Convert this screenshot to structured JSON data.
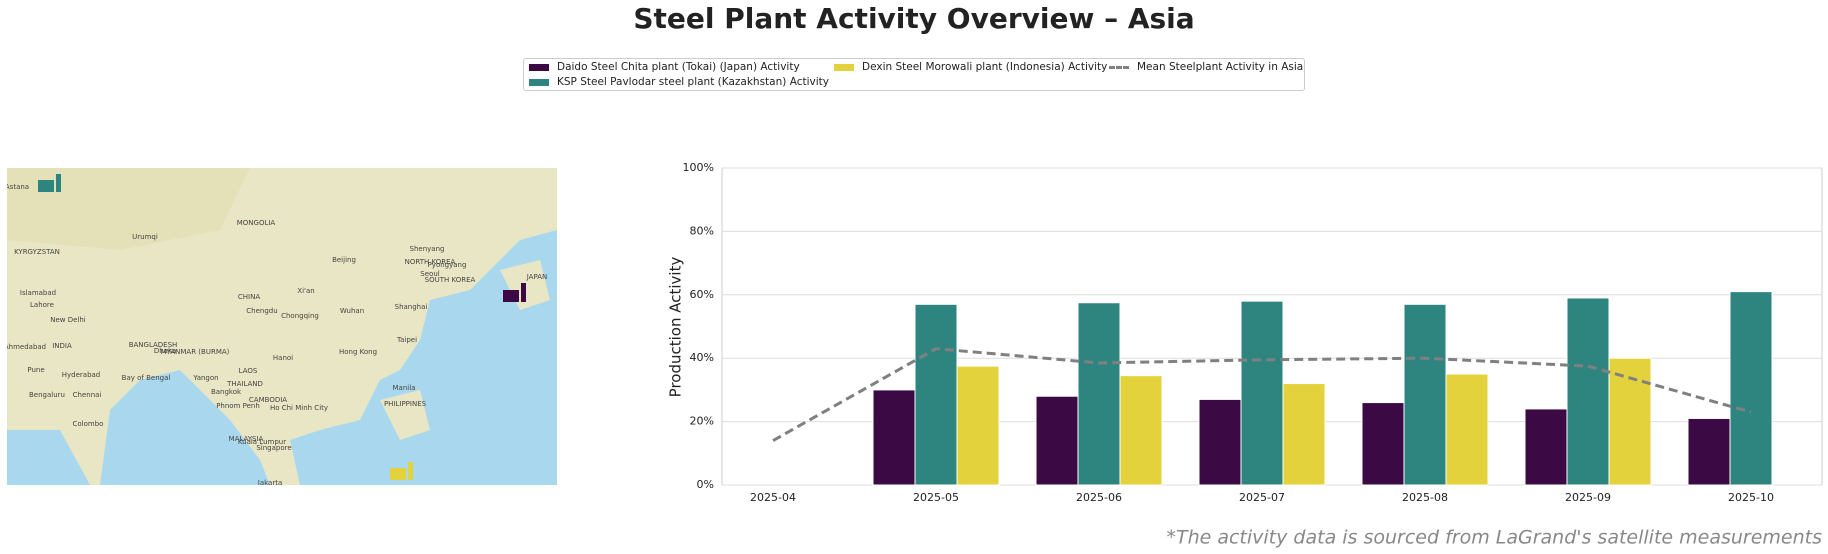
{
  "chart_data": {
    "type": "bar",
    "title": "Steel Plant Activity Overview – Asia",
    "ylabel": "Production Activity",
    "footnote": "*The activity data is sourced from LaGrand's satellite measurements",
    "categories": [
      "2025-04",
      "2025-05",
      "2025-06",
      "2025-07",
      "2025-08",
      "2025-09",
      "2025-10"
    ],
    "series": [
      {
        "name": "Daido Steel Chita plant (Tokai) (Japan) Activity",
        "color": "#3b0a45",
        "type": "bar",
        "values": [
          null,
          30,
          28,
          27,
          26,
          24,
          21
        ]
      },
      {
        "name": "KSP Steel Pavlodar steel plant (Kazakhstan) Activity",
        "color": "#2e8580",
        "type": "bar",
        "values": [
          null,
          57,
          57.5,
          58,
          57,
          59,
          61
        ]
      },
      {
        "name": "Dexin Steel Morowali plant (Indonesia) Activity",
        "color": "#e3d23c",
        "type": "bar",
        "values": [
          null,
          37.5,
          34.5,
          32,
          35,
          40,
          null
        ]
      },
      {
        "name": "Mean Steelplant Activity in Asia",
        "color": "#808080",
        "type": "line",
        "dashed": true,
        "values": [
          14,
          43,
          38.5,
          39.5,
          40,
          37.5,
          23
        ]
      }
    ],
    "ylim": [
      0,
      100
    ],
    "yticks": [
      {
        "value": 0,
        "label": "0%"
      },
      {
        "value": 20,
        "label": "20%"
      },
      {
        "value": 40,
        "label": "40%"
      },
      {
        "value": 60,
        "label": "60%"
      },
      {
        "value": 80,
        "label": "80%"
      },
      {
        "value": 100,
        "label": "100%"
      }
    ],
    "grid": true,
    "legend": "top"
  },
  "map": {
    "labels": [
      "Astana",
      "MONGOLIA",
      "Urumqi",
      "Shenyang",
      "Beijing",
      "Seoul",
      "NORTH KOREA",
      "SOUTH KOREA",
      "Pyongyang",
      "JAPAN",
      "CHINA",
      "Xi'an",
      "Chengdu",
      "Chongqing",
      "Wuhan",
      "Shanghai",
      "Islamabad",
      "Lahore",
      "New Delhi",
      "INDIA",
      "Ahmedabad",
      "Dhaka",
      "BANGLADESH",
      "Taipei",
      "Hong Kong",
      "Hanoi",
      "Pune",
      "Hyderabad",
      "Bay of Bengal",
      "Yangon",
      "THAILAND",
      "Bangkok",
      "Manila",
      "Bengaluru",
      "Chennai",
      "PHILIPPINES",
      "CAMBODIA",
      "Phnom Penh",
      "Ho Chi Minh City",
      "Colombo",
      "MALAYSIA",
      "Kuala Lumpur",
      "Singapore",
      "Jakarta",
      "KYRGYZSTAN",
      "MYANMAR (BURMA)",
      "LAOS"
    ]
  }
}
